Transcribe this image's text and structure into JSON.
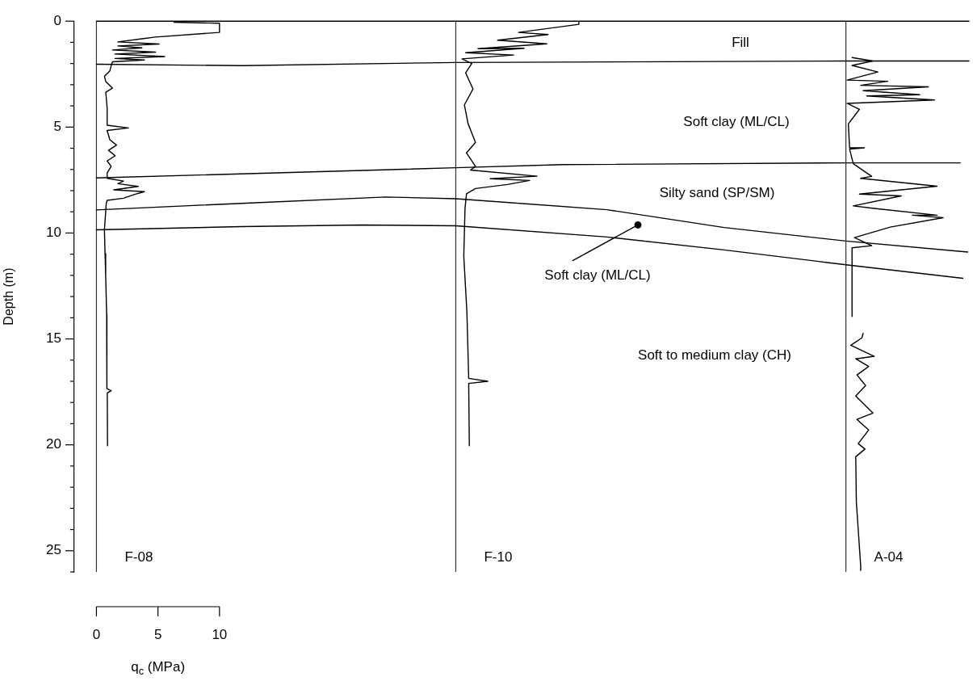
{
  "chart_data": {
    "type": "line",
    "xlabel": "q$_{c}$ (MPa)",
    "ylabel": "Depth (m)",
    "marker": "none",
    "xlim": [
      -1.8,
      70.9
    ],
    "ylim": [
      26,
      0
    ],
    "xticks": [
      0,
      5,
      10
    ],
    "yticks": [
      0,
      {
        "value": 1,
        "label": null
      },
      {
        "value": 2,
        "label": null
      },
      {
        "value": 3,
        "label": null
      },
      {
        "value": 4,
        "label": null
      },
      5,
      {
        "value": 6,
        "label": null
      },
      {
        "value": 7,
        "label": null
      },
      {
        "value": 8,
        "label": null
      },
      {
        "value": 9,
        "label": null
      },
      10,
      {
        "value": 11,
        "label": null
      },
      {
        "value": 12,
        "label": null
      },
      {
        "value": 13,
        "label": null
      },
      {
        "value": 14,
        "label": null
      },
      15,
      {
        "value": 16,
        "label": null
      },
      {
        "value": 17,
        "label": null
      },
      {
        "value": 18,
        "label": null
      },
      {
        "value": 19,
        "label": null
      },
      20,
      {
        "value": 21,
        "label": null
      },
      {
        "value": 22,
        "label": null
      },
      {
        "value": 23,
        "label": null
      },
      {
        "value": 24,
        "label": null
      },
      25,
      {
        "value": 26,
        "label": null
      }
    ],
    "ref_lines": [
      {
        "axis": "x",
        "value": 0,
        "label": "F-08",
        "color": "#333333"
      },
      {
        "axis": "x",
        "value": 29.2,
        "label": "F-10",
        "color": "#333333"
      },
      {
        "axis": "x",
        "value": 60.9,
        "label": "A-04",
        "color": "#333333"
      }
    ],
    "annotations": [
      "Fill",
      "Soft clay (ML/CL)",
      "Silty sand (SP/SM)",
      "Soft clay (ML/CL)",
      "Soft to medium clay (CH)"
    ],
    "series": [
      {
        "color": "#000000",
        "x": [
          6.3,
          10,
          10,
          4.8,
          3.7,
          1.74,
          5.1,
          1.74,
          3.7,
          1.3,
          4.8,
          1.5,
          5.55,
          1.5,
          3.9,
          1.3,
          1.2,
          1.09,
          0.65,
          0.76,
          1.3,
          0.76,
          0.87,
          0.87,
          2.6,
          0.87,
          1.09,
          1.63,
          0.98,
          1.52,
          0.87,
          1.2,
          0.87,
          0.87,
          2.2,
          1.74,
          3.4,
          1.41,
          3.9,
          3.16,
          2.2,
          0.87,
          0.8,
          0.65,
          0.7,
          0.75,
          0.83,
          0.85,
          1.2,
          0.88,
          0.9
        ],
        "values": [
          0.05,
          0.1,
          0.53,
          0.75,
          0.83,
          0.98,
          1.08,
          1.17,
          1.26,
          1.36,
          1.46,
          1.55,
          1.67,
          1.76,
          1.83,
          1.92,
          2.1,
          2.35,
          2.6,
          2.85,
          3.16,
          3.35,
          4.1,
          4.91,
          5.04,
          5.16,
          5.6,
          5.85,
          6.1,
          6.35,
          6.6,
          6.85,
          7.17,
          7.42,
          7.55,
          7.67,
          7.8,
          7.96,
          8.05,
          8.17,
          8.36,
          8.46,
          8.6,
          9.85,
          10.97,
          12.0,
          13.83,
          17.35,
          17.44,
          17.55,
          20.04
        ]
      },
      {
        "color": "#000000",
        "x": [
          39.2,
          39.2,
          34.3,
          36.7,
          32.6,
          36.6,
          31.0,
          34.75,
          30.0,
          33.9,
          29.7,
          30.5,
          30.0,
          30.6,
          29.9,
          30.2,
          30.8,
          30.07,
          30.8,
          30.4,
          35.8,
          32.0,
          35.2,
          33.4,
          30.8,
          30.07,
          29.95,
          29.85,
          30.1,
          30.25,
          31.8,
          30.25,
          30.3
        ],
        "values": [
          0.05,
          0.15,
          0.53,
          0.63,
          0.9,
          1.07,
          1.3,
          1.28,
          1.49,
          1.6,
          1.78,
          2.0,
          2.44,
          3.2,
          3.95,
          4.84,
          5.72,
          6.22,
          6.85,
          7.03,
          7.32,
          7.44,
          7.52,
          7.71,
          7.9,
          8.15,
          8.84,
          11.1,
          13.68,
          16.86,
          17.0,
          17.1,
          20.04
        ]
      },
      {
        "color": "#000000",
        "x": [
          61.4,
          63.1,
          61.4,
          63.5,
          61.0,
          64.3,
          62.1,
          67.6,
          62.3,
          66.9,
          62.6,
          68.1,
          61.0,
          62.0,
          61.1,
          61.2,
          62.4,
          61.2,
          61.5,
          63.0,
          62.1,
          68.3,
          62.0,
          65.4,
          61.5,
          63.2,
          68.3,
          66.3,
          68.8,
          64.5,
          61.6,
          63.0,
          61.4,
          61.4,
          null,
          62.3,
          62.2,
          61.3,
          63.2,
          61.7,
          62.75,
          61.8,
          62.5,
          61.7,
          63.1,
          61.8,
          62.75,
          61.9,
          62.45,
          61.7,
          61.75,
          62.1,
          62.1
        ],
        "values": [
          1.72,
          1.88,
          2.09,
          2.4,
          2.78,
          2.84,
          3.03,
          3.1,
          3.28,
          3.47,
          3.53,
          3.72,
          3.88,
          4.16,
          4.85,
          5.98,
          5.98,
          6.04,
          6.73,
          7.33,
          7.42,
          7.79,
          8.16,
          8.25,
          8.72,
          8.84,
          9.16,
          9.16,
          9.28,
          9.72,
          10.22,
          10.6,
          10.7,
          13.94,
          null,
          14.74,
          14.95,
          15.3,
          15.82,
          15.94,
          16.3,
          16.7,
          17.2,
          17.7,
          18.5,
          18.8,
          19.3,
          19.94,
          20.2,
          20.56,
          22.7,
          25.7,
          25.93
        ]
      },
      {
        "color": "#000000",
        "x": [
          0,
          70.9
        ],
        "values": [
          0,
          0
        ]
      },
      {
        "color": "#000000",
        "x": [
          0,
          11.8,
          29.2,
          60.9,
          70.9
        ],
        "values": [
          2.03,
          2.1,
          1.95,
          1.88,
          1.88
        ]
      },
      {
        "color": "#000000",
        "x": [
          0,
          29.2,
          37.9,
          60.9,
          70.2
        ],
        "values": [
          7.4,
          6.92,
          6.77,
          6.69,
          6.69
        ]
      },
      {
        "color": "#000000",
        "x": [
          0,
          11.8,
          23.5,
          29.2,
          41.5,
          51.0,
          60.9,
          70.8
        ],
        "values": [
          8.91,
          8.6,
          8.3,
          8.38,
          8.9,
          9.74,
          10.38,
          10.9
        ]
      },
      {
        "color": "#000000",
        "x": [
          0,
          11.8,
          21.6,
          29.2,
          41.5,
          51.0,
          60.9,
          70.4
        ],
        "values": [
          9.85,
          9.7,
          9.62,
          9.66,
          10.19,
          10.8,
          11.5,
          12.14
        ]
      },
      {
        "color": "#000000",
        "x": [
          38.7,
          44.0
        ],
        "values": [
          11.3,
          9.62
        ]
      },
      {
        "type": "scatter",
        "marker": "circle",
        "color": "#000000",
        "x": [
          44.0
        ],
        "values": [
          9.62
        ]
      }
    ]
  }
}
